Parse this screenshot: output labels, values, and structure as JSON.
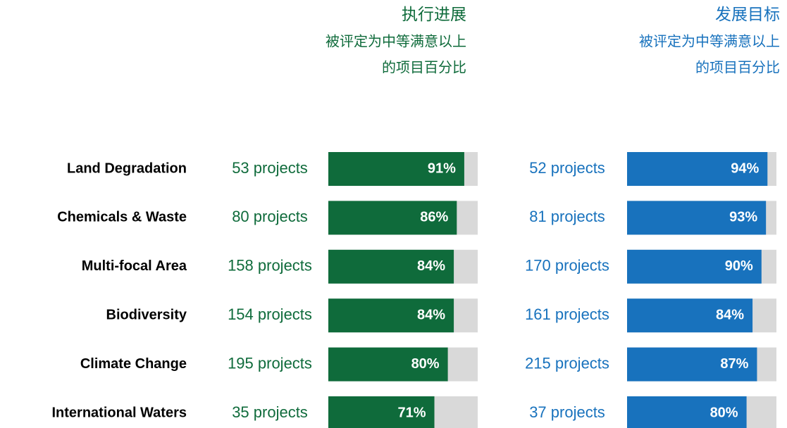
{
  "chart_data": {
    "type": "bar",
    "categories": [
      "Land Degradation",
      "Chemicals & Waste",
      "Multi-focal Area",
      "Biodiversity",
      "Climate Change",
      "International Waters"
    ],
    "xlim": [
      0,
      100
    ],
    "series": [
      {
        "name": "执行进展",
        "subtitle": [
          "被评定为中等满意以上",
          "的项目百分比"
        ],
        "color": "#0f6b3b",
        "values": [
          91,
          86,
          84,
          84,
          80,
          71
        ],
        "value_labels": [
          "91%",
          "86%",
          "84%",
          "84%",
          "80%",
          "71%"
        ],
        "project_labels": [
          "53 projects",
          "80 projects",
          "158 projects",
          "154 projects",
          "195 projects",
          "35 projects"
        ]
      },
      {
        "name": "发展目标",
        "subtitle": [
          "被评定为中等满意以上",
          "的项目百分比"
        ],
        "color": "#1872bd",
        "values": [
          94,
          93,
          90,
          84,
          87,
          80
        ],
        "value_labels": [
          "94%",
          "93%",
          "90%",
          "84%",
          "87%",
          "80%"
        ],
        "project_labels": [
          "52 projects",
          "81 projects",
          "170 projects",
          "161 projects",
          "215 projects",
          "37 projects"
        ]
      }
    ]
  }
}
